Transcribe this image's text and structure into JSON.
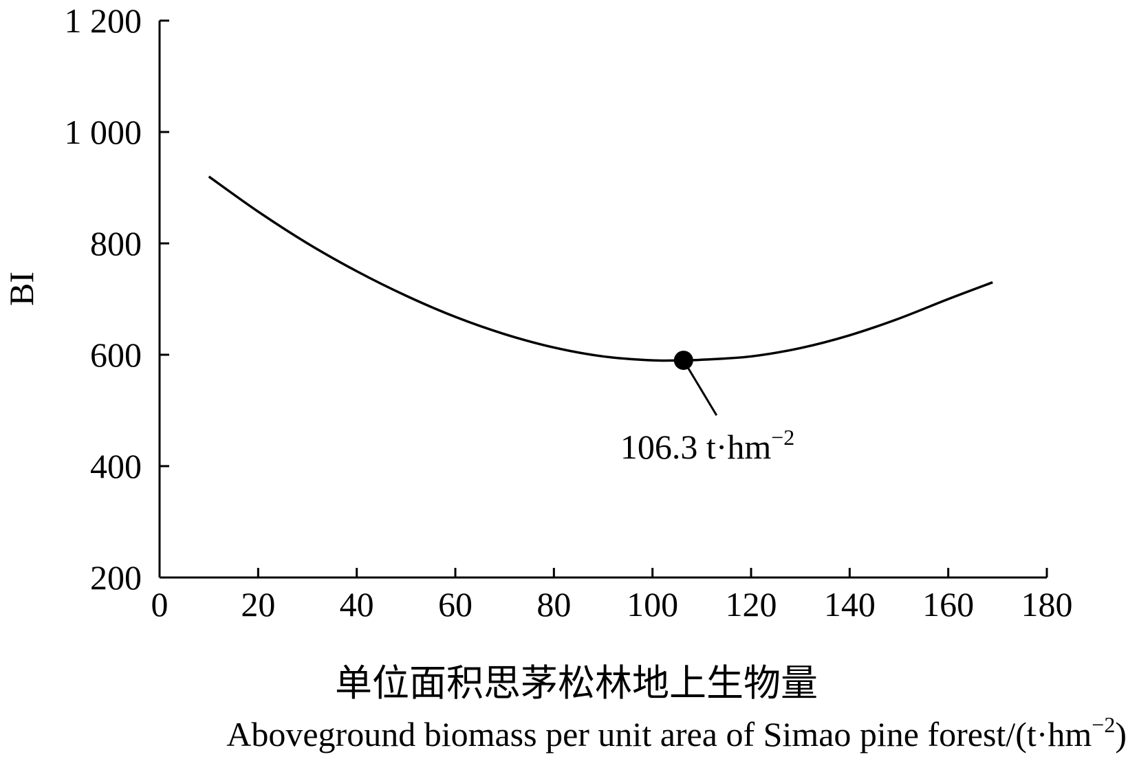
{
  "chart_data": {
    "type": "line",
    "xlabel_cn": "单位面积思茅松林地上生物量",
    "xlabel_en": "Aboveground biomass per unit area of Simao pine forest/(t·hm",
    "xlabel_en_sup": "−2",
    "xlabel_en_end": ")",
    "ylabel": "BI",
    "xlim": [
      0,
      180
    ],
    "ylim": [
      200,
      1200
    ],
    "x_ticks": [
      "0",
      "20",
      "40",
      "60",
      "80",
      "100",
      "120",
      "140",
      "160",
      "180"
    ],
    "y_ticks": [
      "200",
      "400",
      "600",
      "800",
      "1 000",
      "1 200"
    ],
    "grid": false,
    "series": [
      {
        "x": [
          10,
          20,
          30,
          40,
          50,
          60,
          70,
          80,
          90,
          100,
          106.3,
          110,
          120,
          130,
          140,
          150,
          160,
          169
        ],
        "values": [
          920,
          857,
          800,
          750,
          706,
          668,
          637,
          613,
          597,
          590,
          590,
          591,
          597,
          612,
          635,
          665,
          700,
          730
        ]
      }
    ],
    "annotation": {
      "x": 106.3,
      "y": 590,
      "text": "106.3 t·hm",
      "sup": "−2"
    }
  }
}
